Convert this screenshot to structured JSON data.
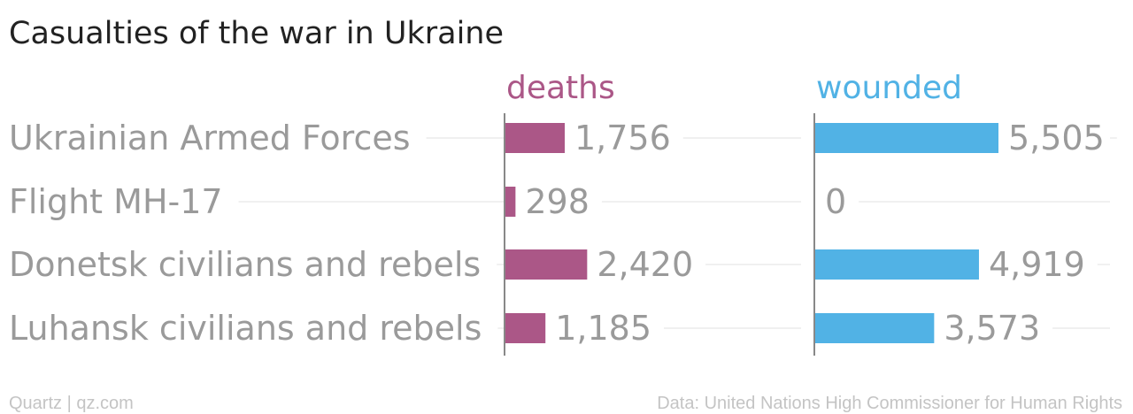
{
  "chart_data": {
    "type": "bar",
    "title": "Casualties of the war in Ukraine",
    "categories": [
      "Ukrainian Armed Forces",
      "Flight MH-17",
      "Donetsk civilians and rebels",
      "Luhansk civilians and rebels"
    ],
    "series": [
      {
        "name": "deaths",
        "values": [
          1756,
          298,
          2420,
          1185
        ],
        "labels": [
          "1,756",
          "298",
          "2,420",
          "1,185"
        ]
      },
      {
        "name": "wounded",
        "values": [
          5505,
          0,
          4919,
          3573
        ],
        "labels": [
          "5,505",
          "0",
          "4,919",
          "3,573"
        ]
      }
    ],
    "grid": true,
    "legend": "series names above each panel"
  },
  "footer": {
    "left": "Quartz | qz.com",
    "right": "Data: United Nations High Commissioner for Human Rights"
  },
  "colors": {
    "deaths": "#ab5787",
    "wounded": "#51b2e5",
    "category_text": "#9a9a9a",
    "title_text": "#222222",
    "footer_text": "#c4c4c4",
    "gridline": "#ececec",
    "axis": "#888888"
  }
}
